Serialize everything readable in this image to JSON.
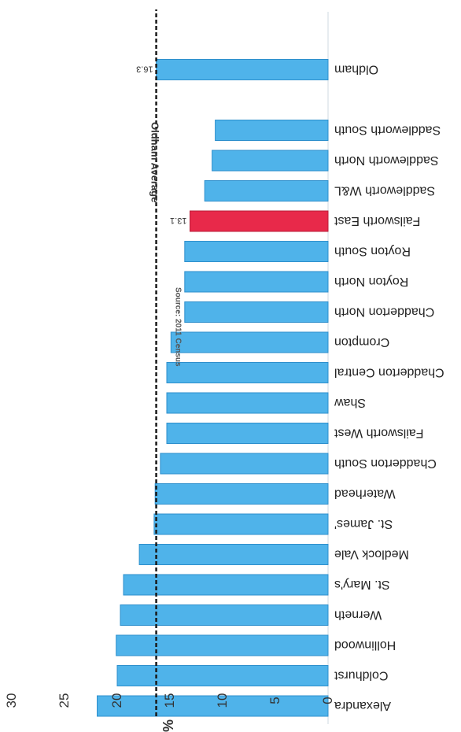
{
  "chart_data": {
    "type": "bar",
    "orientation": "horizontal",
    "rotated_180": true,
    "source": "Source: 2011 Census",
    "categories": [
      "Alexandra",
      "Coldhurst",
      "Hollinwood",
      "Werneth",
      "St. Mary's",
      "Medlock Vale",
      "St. James'",
      "Waterhead",
      "Chadderton South",
      "Failsworth West",
      "Shaw",
      "Chadderton Central",
      "Crompton",
      "Chadderton North",
      "Royton North",
      "Royton South",
      "Failsworth East",
      "Saddleworth W&L",
      "Saddleworth North",
      "Saddleworth South",
      "Oldham"
    ],
    "values": [
      21.9,
      20.0,
      20.1,
      19.7,
      19.4,
      17.9,
      16.5,
      16.4,
      15.9,
      15.3,
      15.3,
      15.3,
      14.9,
      13.6,
      13.6,
      13.6,
      13.1,
      11.7,
      11.0,
      10.7,
      16.3
    ],
    "highlight": "Failsworth East",
    "data_labels": {
      "Failsworth East": "13.1",
      "Oldham": "16.3"
    },
    "average": {
      "label": "Oldham Average",
      "value": 16.3
    },
    "xlabel": "%",
    "xlim": [
      0,
      30
    ],
    "ticks": [
      0,
      5,
      10,
      15,
      20,
      25,
      30
    ],
    "grid": false,
    "colors": {
      "bar": "#4fb3ea",
      "bar_border": "#2d8fcc",
      "highlight": "#e8294a",
      "average_line": "#1a1a1a"
    }
  }
}
